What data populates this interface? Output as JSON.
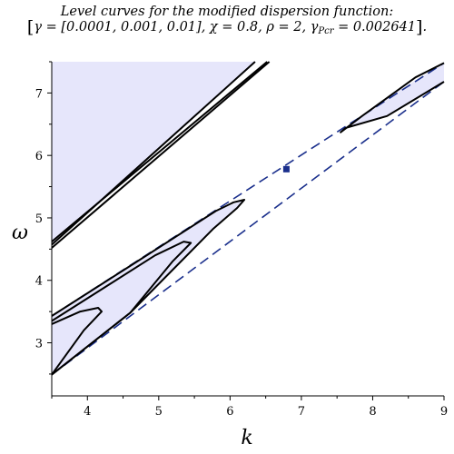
{
  "title": {
    "line1": "Level curves for the modified dispersion function:",
    "line2_parts": {
      "gamma_lhs": "γ = ",
      "gamma_values": "[0.0001, 0.001, 0.01]",
      "chi": ", χ = 0.8, ρ = 2, ",
      "gamma_pcr_base": "γ",
      "gamma_pcr_sub": "Pcr",
      "gamma_pcr_value": " = 0.002641"
    }
  },
  "chart_data": {
    "type": "line",
    "title": "Level curves for the modified dispersion function: [γ = [0.0001, 0.001, 0.01], χ = 0.8, ρ = 2, γPcr = 0.002641].",
    "xlabel": "k",
    "ylabel": "ω",
    "xlim": [
      3.5,
      9.0
    ],
    "ylim": [
      2.15,
      7.5
    ],
    "xticks": [
      4,
      5,
      6,
      7,
      8,
      9
    ],
    "yticks": [
      3,
      4,
      5,
      6,
      7
    ],
    "grid": false,
    "legend": "none",
    "colors": {
      "fill": "#e6e6fb",
      "curve": "#000000",
      "asymptote": "#1a2f8c",
      "critical_point": "#1a2f8c"
    },
    "critical_point": {
      "k": 6.79,
      "omega": 5.78
    },
    "asymptotes": [
      {
        "name": "upper",
        "points": [
          [
            3.5,
            3.43
          ],
          [
            9.0,
            7.48
          ]
        ]
      },
      {
        "name": "lower",
        "points": [
          [
            3.5,
            2.49
          ],
          [
            9.0,
            7.18
          ]
        ]
      }
    ],
    "filled_regions": [
      {
        "name": "upper-left-region",
        "points": [
          [
            3.5,
            4.57
          ],
          [
            6.37,
            7.5
          ],
          [
            3.5,
            7.5
          ]
        ]
      },
      {
        "name": "lower-left-lobe",
        "points": [
          [
            3.5,
            3.43
          ],
          [
            4.6,
            4.23
          ],
          [
            5.8,
            5.11
          ],
          [
            6.2,
            5.29
          ],
          [
            5.76,
            4.82
          ],
          [
            4.6,
            3.48
          ],
          [
            3.5,
            2.49
          ]
        ]
      },
      {
        "name": "upper-right-lobe",
        "points": [
          [
            7.55,
            6.37
          ],
          [
            8.2,
            6.92
          ],
          [
            9.0,
            7.48
          ],
          [
            9.0,
            7.18
          ],
          [
            8.2,
            6.63
          ],
          [
            7.62,
            6.44
          ]
        ]
      }
    ],
    "series": [
      {
        "points": [
          [
            3.5,
            4.52
          ],
          [
            6.55,
            7.5
          ]
        ]
      },
      {
        "points": [
          [
            3.5,
            4.62
          ],
          [
            6.52,
            7.5
          ]
        ]
      },
      {
        "points": [
          [
            3.5,
            4.57
          ],
          [
            6.35,
            7.5
          ]
        ]
      },
      {
        "points": [
          [
            3.5,
            3.43
          ],
          [
            4.6,
            4.23
          ],
          [
            5.8,
            5.11
          ],
          [
            6.05,
            5.25
          ],
          [
            6.2,
            5.29
          ],
          [
            6.1,
            5.16
          ],
          [
            5.76,
            4.82
          ],
          [
            4.6,
            3.48
          ],
          [
            3.5,
            2.49
          ]
        ]
      },
      {
        "points": [
          [
            3.5,
            3.35
          ],
          [
            4.3,
            3.93
          ],
          [
            4.95,
            4.4
          ],
          [
            5.35,
            4.62
          ],
          [
            5.45,
            4.6
          ],
          [
            5.2,
            4.31
          ],
          [
            4.6,
            3.48
          ],
          [
            3.5,
            2.49
          ]
        ]
      },
      {
        "points": [
          [
            3.5,
            3.3
          ],
          [
            3.9,
            3.5
          ],
          [
            4.15,
            3.56
          ],
          [
            4.2,
            3.5
          ],
          [
            3.95,
            3.2
          ],
          [
            3.5,
            2.49
          ]
        ]
      },
      {
        "points": [
          [
            9.0,
            7.48
          ],
          [
            8.6,
            7.25
          ],
          [
            8.2,
            6.92
          ],
          [
            7.85,
            6.63
          ],
          [
            7.55,
            6.37
          ],
          [
            7.62,
            6.44
          ],
          [
            8.2,
            6.63
          ],
          [
            9.0,
            7.18
          ]
        ]
      }
    ]
  }
}
